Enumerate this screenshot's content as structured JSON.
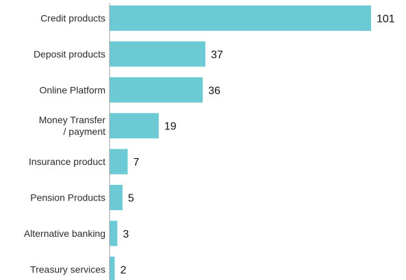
{
  "chart_data": {
    "type": "bar",
    "orientation": "horizontal",
    "categories": [
      [
        "Credit products"
      ],
      [
        "Deposit products"
      ],
      [
        "Online Platform"
      ],
      [
        "Money Transfer",
        "/ payment"
      ],
      [
        "Insurance product"
      ],
      [
        "Pension Products"
      ],
      [
        "Alternative banking"
      ],
      [
        "Treasury services"
      ]
    ],
    "values": [
      101,
      37,
      36,
      19,
      7,
      5,
      3,
      2
    ],
    "value_labels": [
      "101",
      "37",
      "36",
      "19",
      "7",
      "5",
      "3",
      "2"
    ],
    "title": "",
    "xlabel": "",
    "ylabel": "",
    "xlim": [
      0,
      101
    ],
    "grid": false,
    "legend": "none",
    "bar_color": "#6ccad4",
    "axis_color": "#9aa0a6"
  }
}
